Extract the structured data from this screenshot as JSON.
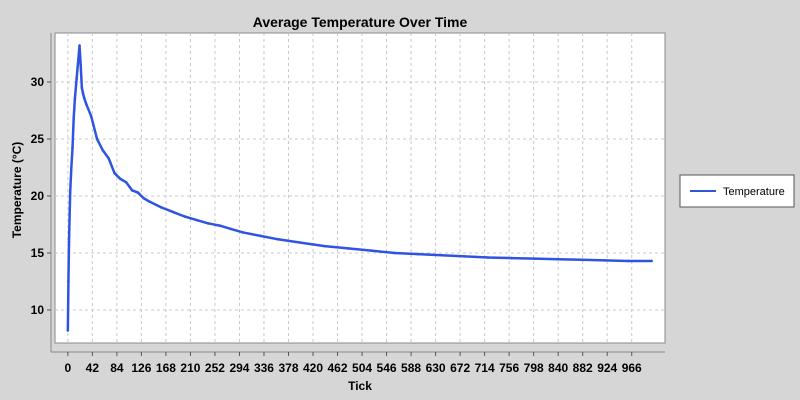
{
  "chart_data": {
    "type": "line",
    "title": "Average Temperature Over Time",
    "xlabel": "Tick",
    "ylabel": "Temperature (°C)",
    "xlim": [
      -22,
      1023
    ],
    "ylim": [
      7.1,
      34.3
    ],
    "x_ticks": [
      0,
      42,
      84,
      126,
      168,
      210,
      252,
      294,
      336,
      378,
      420,
      462,
      504,
      546,
      588,
      630,
      672,
      714,
      756,
      798,
      840,
      882,
      924,
      966
    ],
    "y_ticks": [
      10,
      15,
      20,
      25,
      30
    ],
    "grid": true,
    "legend_position": "right",
    "series": [
      {
        "name": "Temperature",
        "color": "#2f55e0",
        "x": [
          0,
          1,
          2,
          4,
          6,
          8,
          10,
          12,
          15,
          18,
          20,
          22,
          24,
          26,
          28,
          32,
          40,
          50,
          60,
          70,
          80,
          90,
          100,
          110,
          120,
          130,
          140,
          160,
          180,
          200,
          220,
          240,
          260,
          280,
          300,
          330,
          360,
          400,
          440,
          480,
          520,
          560,
          600,
          640,
          680,
          720,
          760,
          800,
          840,
          880,
          920,
          960,
          1000
        ],
        "values": [
          8.2,
          12.5,
          16.0,
          20.3,
          22.5,
          24.2,
          26.8,
          28.5,
          30.3,
          32.0,
          33.2,
          31.5,
          29.5,
          29.0,
          28.6,
          28.0,
          27.0,
          25.0,
          24.0,
          23.3,
          22.0,
          21.5,
          21.2,
          20.5,
          20.3,
          19.8,
          19.5,
          19.0,
          18.6,
          18.2,
          17.9,
          17.6,
          17.4,
          17.1,
          16.8,
          16.5,
          16.2,
          15.9,
          15.6,
          15.4,
          15.2,
          15.0,
          14.9,
          14.8,
          14.7,
          14.6,
          14.55,
          14.5,
          14.45,
          14.4,
          14.35,
          14.3,
          14.3
        ]
      }
    ]
  }
}
